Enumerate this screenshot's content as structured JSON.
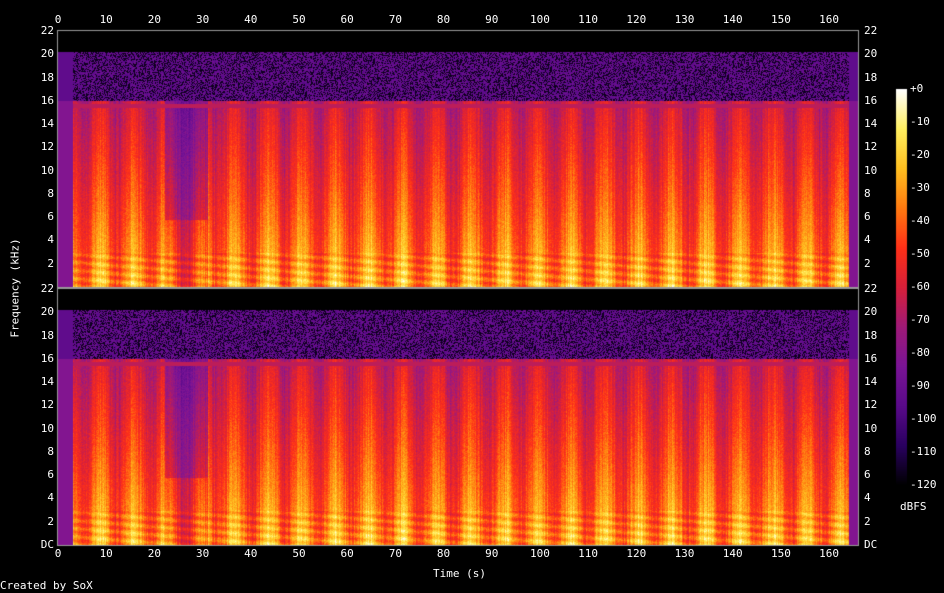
{
  "chart_data": {
    "type": "heatmap",
    "title": "",
    "xlabel": "Time (s)",
    "ylabel": "Frequency (kHz)",
    "xlim": [
      0,
      166
    ],
    "ylim": [
      0,
      22
    ],
    "x_ticks": [
      "0",
      "10",
      "20",
      "30",
      "40",
      "50",
      "60",
      "70",
      "80",
      "90",
      "100",
      "110",
      "120",
      "130",
      "140",
      "150",
      "160"
    ],
    "y_ticks": [
      "DC",
      "2",
      "4",
      "6",
      "8",
      "10",
      "12",
      "14",
      "16",
      "18",
      "20",
      "22"
    ],
    "channels": 2,
    "colorbar": {
      "label": "dBFS",
      "ticks": [
        "+0",
        "-10",
        "-20",
        "-30",
        "-40",
        "-50",
        "-60",
        "-70",
        "-80",
        "-90",
        "-100",
        "-110",
        "-120"
      ],
      "range": [
        -120,
        0
      ],
      "colors": [
        "#000000",
        "#2a0060",
        "#5a0a8a",
        "#7a1496",
        "#a01a78",
        "#d8203a",
        "#ff3018",
        "#ff7a10",
        "#ffc020",
        "#fff060",
        "#ffffff"
      ]
    },
    "features": {
      "band_limit_khz": 16,
      "silence_end_s": [
        0,
        3
      ],
      "silence_start_s": 164,
      "quiet_segment_s": [
        22,
        31
      ]
    },
    "credit": "Created by SoX"
  }
}
